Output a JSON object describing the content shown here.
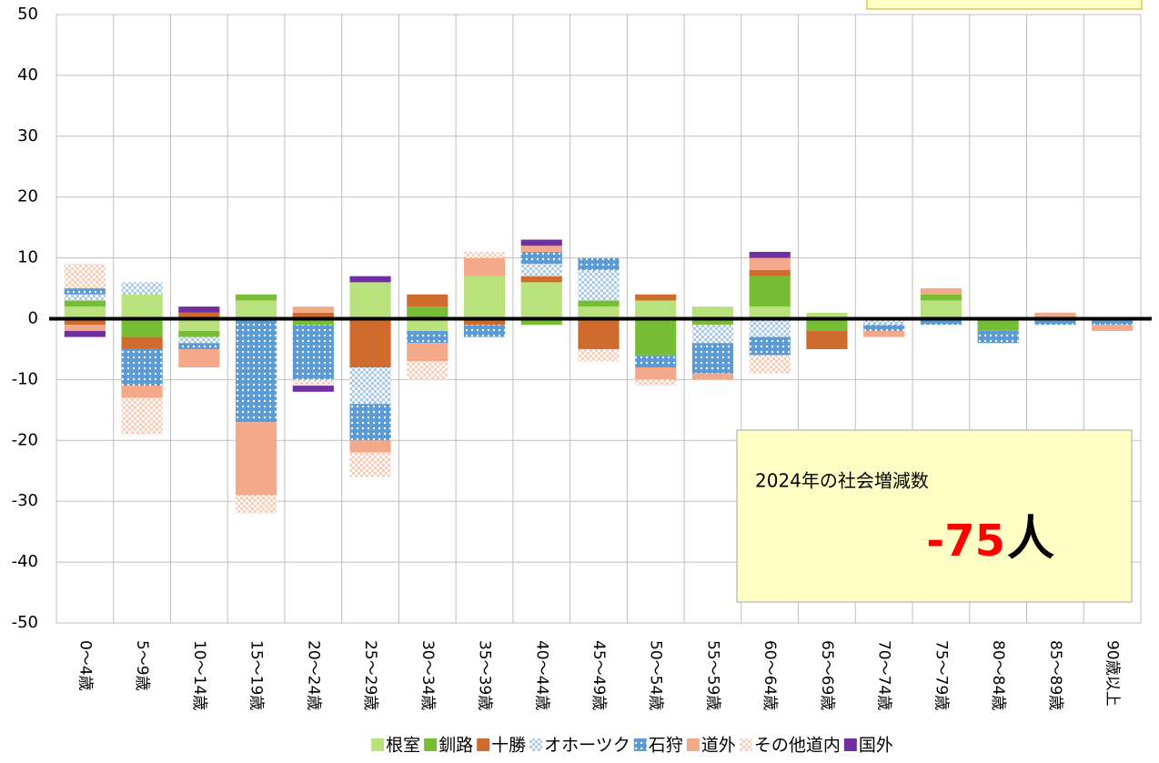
{
  "chart_data": {
    "type": "bar",
    "stacked": true,
    "categories": [
      "0～4歳",
      "5～9歳",
      "10～14歳",
      "15～19歳",
      "20～24歳",
      "25～29歳",
      "30～34歳",
      "35～39歳",
      "40～44歳",
      "45～49歳",
      "50～54歳",
      "55～59歳",
      "60～64歳",
      "65～69歳",
      "70～74歳",
      "75～79歳",
      "80～84歳",
      "85～89歳",
      "90歳以上"
    ],
    "series": [
      {
        "name": "根室",
        "color": "#b9e27d",
        "values": [
          2,
          4,
          -2,
          3,
          0,
          6,
          -2,
          7,
          6,
          2,
          3,
          2,
          2,
          1,
          0,
          3,
          0,
          0,
          0
        ]
      },
      {
        "name": "釧路",
        "color": "#77bd36",
        "values": [
          1,
          -3,
          -1,
          1,
          -1,
          0,
          2,
          0,
          -1,
          1,
          -6,
          -1,
          5,
          -2,
          0,
          1,
          -2,
          0,
          0
        ]
      },
      {
        "name": "十勝",
        "color": "#cf6b2c",
        "values": [
          -1,
          -2,
          1,
          0,
          1,
          -8,
          2,
          -1,
          1,
          -5,
          1,
          0,
          1,
          -3,
          0,
          0,
          0,
          0,
          0
        ]
      },
      {
        "name": "オホーツク",
        "color": "#a8c8ec",
        "pattern": "checker",
        "values": [
          1,
          2,
          -1,
          0,
          0,
          -6,
          0,
          0,
          2,
          5,
          0,
          -3,
          -3,
          0,
          -1,
          0,
          0,
          0,
          0
        ]
      },
      {
        "name": "石狩",
        "color": "#5b9bd5",
        "pattern": "dots",
        "values": [
          1,
          -6,
          -1,
          -17,
          -9,
          -6,
          -2,
          -2,
          2,
          2,
          -2,
          -5,
          -3,
          0,
          -1,
          -1,
          -2,
          -1,
          -1
        ]
      },
      {
        "name": "道外",
        "color": "#f4a98a",
        "values": [
          -1,
          -2,
          -3,
          -12,
          1,
          -2,
          -3,
          3,
          1,
          0,
          -2,
          -1,
          2,
          0,
          -1,
          1,
          0,
          1,
          -1
        ]
      },
      {
        "name": "その他道内",
        "color": "#f9cdb8",
        "pattern": "checker",
        "values": [
          4,
          -6,
          0,
          -3,
          -1,
          -4,
          -3,
          1,
          0,
          -2,
          -1,
          0,
          -3,
          0,
          0,
          0,
          0,
          0,
          0
        ]
      },
      {
        "name": "国外",
        "color": "#7030a0",
        "values": [
          -1,
          0,
          1,
          0,
          -1,
          1,
          0,
          0,
          1,
          0,
          0,
          0,
          1,
          0,
          0,
          0,
          0,
          0,
          0
        ]
      }
    ],
    "ylim": [
      -50,
      50
    ],
    "yticks": [
      -50,
      -40,
      -30,
      -20,
      -10,
      0,
      10,
      20,
      30,
      40,
      50
    ],
    "grid": true,
    "legend": "bottom",
    "note": "2024年の社会増減数",
    "note_value": -75,
    "note_unit": "人"
  }
}
